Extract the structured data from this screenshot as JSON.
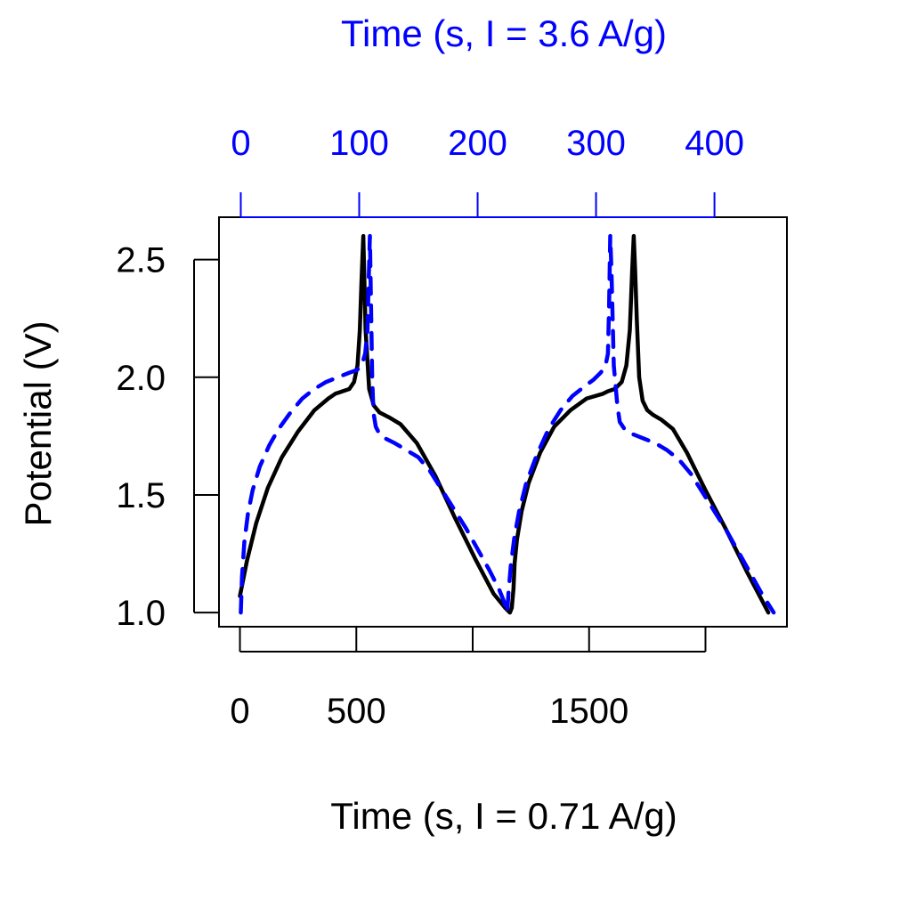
{
  "chart_data": {
    "type": "line",
    "title": "",
    "xlabel": "Time (s, I = 0.71 A/g)",
    "x2label": "Time (s, I = 3.6 A/g)",
    "ylabel": "Potential (V)",
    "xlim": [
      -90,
      2350
    ],
    "x2lim": [
      -18.4,
      461.2
    ],
    "ylim": [
      0.94,
      2.68
    ],
    "x_ticks": [
      0,
      500,
      1000,
      1500,
      2000
    ],
    "x_tick_labels": [
      "0",
      "500",
      "",
      "1500",
      ""
    ],
    "x2_ticks": [
      0,
      100,
      200,
      300,
      400
    ],
    "x2_tick_labels": [
      "0",
      "100",
      "200",
      "300",
      "400"
    ],
    "y_ticks": [
      1.0,
      1.5,
      2.0,
      2.5
    ],
    "y_tick_labels": [
      "1.0",
      "1.5",
      "2.0",
      "2.5"
    ],
    "grid": false,
    "legend": null,
    "colors": {
      "low_current": "#000000",
      "high_current": "#0000ff"
    },
    "series": [
      {
        "name": "I = 0.71 A/g",
        "axis": "bottom",
        "style": "solid",
        "x": [
          0,
          30,
          70,
          120,
          180,
          250,
          320,
          380,
          410,
          440,
          470,
          490,
          505,
          515,
          522,
          530,
          540,
          555,
          575,
          600,
          640,
          690,
          760,
          840,
          920,
          1010,
          1090,
          1140,
          1150,
          1160,
          1168,
          1175,
          1180,
          1190,
          1210,
          1240,
          1290,
          1350,
          1420,
          1490,
          1560,
          1580,
          1610,
          1640,
          1660,
          1675,
          1685,
          1692,
          1698,
          1705,
          1715,
          1730,
          1750,
          1775,
          1810,
          1860,
          1920,
          2000,
          2090,
          2180,
          2270
        ],
        "y": [
          1.07,
          1.22,
          1.38,
          1.53,
          1.66,
          1.77,
          1.86,
          1.91,
          1.93,
          1.94,
          1.95,
          1.98,
          2.05,
          2.2,
          2.4,
          2.6,
          2.2,
          1.95,
          1.88,
          1.85,
          1.83,
          1.8,
          1.72,
          1.58,
          1.41,
          1.23,
          1.08,
          1.02,
          1.01,
          1.0,
          1.02,
          1.1,
          1.21,
          1.31,
          1.43,
          1.55,
          1.68,
          1.79,
          1.86,
          1.91,
          1.93,
          1.94,
          1.95,
          1.98,
          2.05,
          2.2,
          2.45,
          2.6,
          2.45,
          2.25,
          2.0,
          1.9,
          1.86,
          1.84,
          1.82,
          1.78,
          1.68,
          1.52,
          1.35,
          1.17,
          1.0
        ]
      },
      {
        "name": "I = 3.6 A/g",
        "axis": "top",
        "style": "dashed",
        "x": [
          0,
          1,
          3,
          6,
          10,
          16,
          24,
          32,
          42,
          52,
          62,
          72,
          82,
          92,
          98,
          102,
          105,
          107,
          108,
          109,
          110,
          111,
          112,
          114,
          117,
          122,
          130,
          140,
          150,
          160,
          170,
          180,
          190,
          200,
          210,
          218,
          222,
          224,
          225,
          226,
          228,
          231,
          235,
          241,
          250,
          260,
          270,
          280,
          290,
          298,
          304,
          308,
          310,
          311,
          312,
          313,
          315,
          318,
          320,
          324,
          330,
          340,
          350,
          360,
          370,
          380,
          390,
          400,
          410,
          420,
          430,
          440,
          450
        ],
        "y": [
          1.0,
          1.15,
          1.3,
          1.42,
          1.52,
          1.62,
          1.71,
          1.78,
          1.85,
          1.91,
          1.95,
          1.98,
          2.0,
          2.02,
          2.03,
          2.05,
          2.1,
          2.2,
          2.4,
          2.6,
          2.3,
          2.0,
          1.85,
          1.79,
          1.76,
          1.74,
          1.72,
          1.69,
          1.66,
          1.6,
          1.52,
          1.44,
          1.36,
          1.27,
          1.18,
          1.1,
          1.05,
          1.02,
          1.0,
          1.08,
          1.2,
          1.32,
          1.43,
          1.55,
          1.67,
          1.78,
          1.86,
          1.92,
          1.96,
          1.99,
          2.02,
          2.05,
          2.1,
          2.3,
          2.6,
          2.45,
          2.05,
          1.88,
          1.81,
          1.78,
          1.76,
          1.74,
          1.72,
          1.69,
          1.65,
          1.59,
          1.51,
          1.43,
          1.35,
          1.26,
          1.17,
          1.08,
          1.0
        ]
      }
    ]
  }
}
